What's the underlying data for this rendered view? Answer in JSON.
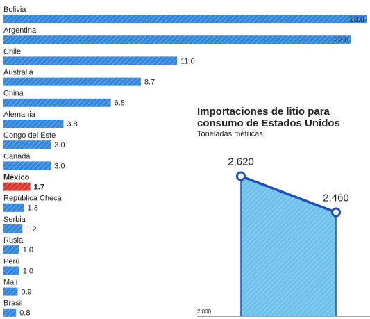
{
  "chart_data": [
    {
      "type": "bar",
      "orientation": "horizontal",
      "categories": [
        "Bolivia",
        "Argentina",
        "Chile",
        "Australia",
        "China",
        "Alemania",
        "Congo del Este",
        "Canadá",
        "México",
        "República Checa",
        "Serbia",
        "Rusia",
        "Perú",
        "Mali",
        "Brasil"
      ],
      "values": [
        23.0,
        22.0,
        11.0,
        8.7,
        6.8,
        3.8,
        3.0,
        3.0,
        1.7,
        1.3,
        1.2,
        1.0,
        1.0,
        0.9,
        0.8
      ],
      "value_labels": [
        "23.0",
        "22.0",
        "11.0",
        "8.7",
        "6.8",
        "3.8",
        "3.0",
        "3.0",
        "1.7",
        "1.3",
        "1.2",
        "1.0",
        "1.0",
        "0.9",
        "0.8"
      ],
      "colors": [
        "#2f86dc",
        "#2f86dc",
        "#2f86dc",
        "#2f86dc",
        "#2f86dc",
        "#2f86dc",
        "#2f86dc",
        "#2f86dc",
        "#d9362b",
        "#2f86dc",
        "#2f86dc",
        "#2f86dc",
        "#2f86dc",
        "#2f86dc",
        "#2f86dc"
      ],
      "xlim": [
        0,
        23
      ]
    },
    {
      "type": "area",
      "title": "Importaciones de litio para consumo de Estados Unidos",
      "subtitle": "Toneladas métricas",
      "categories": [
        null,
        null
      ],
      "values": [
        2620,
        2460
      ],
      "value_labels": [
        "2,620",
        "2,460"
      ],
      "color": "#1f4fb8",
      "fill": "#6cc0ec",
      "ylim": [
        2000,
        2800
      ],
      "yticks": [
        {
          "value": 2000,
          "label": "2,000"
        }
      ]
    }
  ]
}
